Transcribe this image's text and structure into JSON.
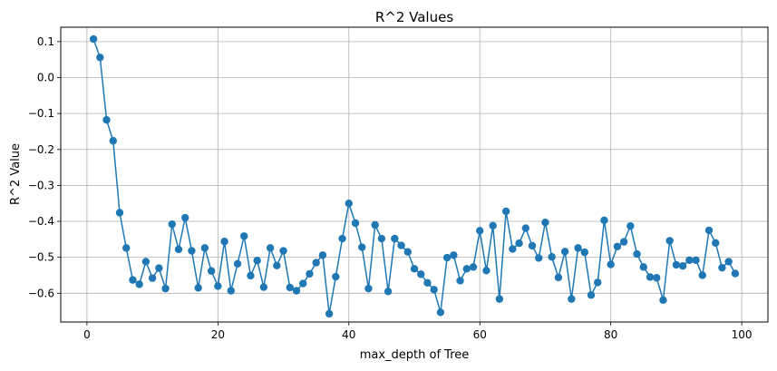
{
  "chart_data": {
    "type": "line",
    "title": "R^2 Values",
    "xlabel": "max_depth of Tree",
    "ylabel": "R^2 Value",
    "xlim": [
      -4,
      104
    ],
    "ylim": [
      -0.68,
      0.14
    ],
    "grid": true,
    "xticks": [
      0,
      20,
      40,
      60,
      80,
      100
    ],
    "yticks": [
      0.1,
      0.0,
      -0.1,
      -0.2,
      -0.3,
      -0.4,
      -0.5,
      -0.6
    ],
    "xtick_labels": [
      "0",
      "20",
      "40",
      "60",
      "80",
      "100"
    ],
    "ytick_labels": [
      "0.1",
      "0.0",
      "−0.1",
      "−0.2",
      "−0.3",
      "−0.4",
      "−0.5",
      "−0.6"
    ],
    "series": [
      {
        "name": "R^2",
        "color": "#1f77b4",
        "marker": "circle",
        "x": [
          1,
          2,
          3,
          4,
          5,
          6,
          7,
          8,
          9,
          10,
          11,
          12,
          13,
          14,
          15,
          16,
          17,
          18,
          19,
          20,
          21,
          22,
          23,
          24,
          25,
          26,
          27,
          28,
          29,
          30,
          31,
          32,
          33,
          34,
          35,
          36,
          37,
          38,
          39,
          40,
          41,
          42,
          43,
          44,
          45,
          46,
          47,
          48,
          49,
          50,
          51,
          52,
          53,
          54,
          55,
          56,
          57,
          58,
          59,
          60,
          61,
          62,
          63,
          64,
          65,
          66,
          67,
          68,
          69,
          70,
          71,
          72,
          73,
          74,
          75,
          76,
          77,
          78,
          79,
          80,
          81,
          82,
          83,
          84,
          85,
          86,
          87,
          88,
          89,
          90,
          91,
          92,
          93,
          94,
          95,
          96,
          97,
          98,
          99
        ],
        "values": [
          0.107,
          0.056,
          -0.118,
          -0.176,
          -0.376,
          -0.474,
          -0.563,
          -0.575,
          -0.512,
          -0.558,
          -0.53,
          -0.587,
          -0.408,
          -0.478,
          -0.39,
          -0.482,
          -0.585,
          -0.474,
          -0.538,
          -0.58,
          -0.456,
          -0.593,
          -0.518,
          -0.441,
          -0.551,
          -0.509,
          -0.583,
          -0.474,
          -0.523,
          -0.482,
          -0.584,
          -0.593,
          -0.573,
          -0.546,
          -0.515,
          -0.494,
          -0.657,
          -0.554,
          -0.448,
          -0.35,
          -0.405,
          -0.472,
          -0.587,
          -0.41,
          -0.448,
          -0.595,
          -0.448,
          -0.467,
          -0.485,
          -0.532,
          -0.547,
          -0.571,
          -0.59,
          -0.653,
          -0.501,
          -0.494,
          -0.565,
          -0.532,
          -0.527,
          -0.426,
          -0.537,
          -0.412,
          -0.616,
          -0.372,
          -0.477,
          -0.461,
          -0.419,
          -0.468,
          -0.502,
          -0.403,
          -0.499,
          -0.556,
          -0.484,
          -0.616,
          -0.474,
          -0.486,
          -0.605,
          -0.57,
          -0.397,
          -0.52,
          -0.47,
          -0.457,
          -0.413,
          -0.491,
          -0.527,
          -0.555,
          -0.557,
          -0.619,
          -0.454,
          -0.521,
          -0.524,
          -0.508,
          -0.508,
          -0.55,
          -0.425,
          -0.46,
          -0.529,
          -0.512,
          -0.545
        ]
      }
    ]
  }
}
